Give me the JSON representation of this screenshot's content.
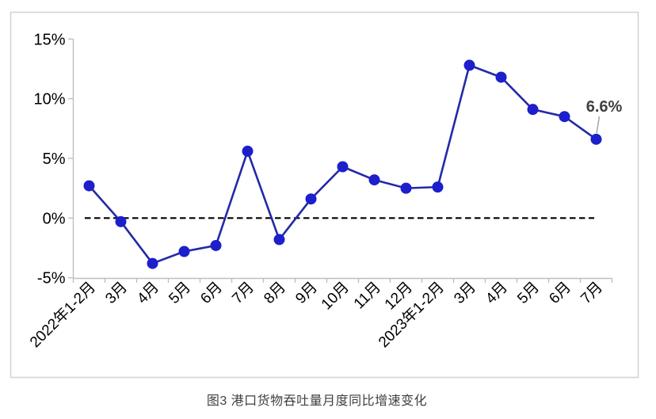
{
  "figure": {
    "caption": "图3 港口货物吞吐量月度同比增速变化",
    "annotation": {
      "text": "6.6%"
    }
  },
  "chart_data": {
    "type": "line",
    "title": "图3 港口货物吞吐量月度同比增速变化",
    "categories": [
      "2022年1-2月",
      "3月",
      "4月",
      "5月",
      "6月",
      "7月",
      "8月",
      "9月",
      "10月",
      "11月",
      "12月",
      "2023年1-2月",
      "3月",
      "4月",
      "5月",
      "6月",
      "7月"
    ],
    "series": [
      {
        "name": "港口货物吞吐量月度同比增速",
        "values": [
          2.7,
          -0.3,
          -3.8,
          -2.8,
          -2.3,
          5.6,
          -1.8,
          1.6,
          4.3,
          3.2,
          2.5,
          2.6,
          12.8,
          11.8,
          9.1,
          8.5,
          6.6
        ]
      }
    ],
    "ylim": [
      -5,
      15
    ],
    "yticks": [
      15,
      10,
      5,
      0,
      -5
    ],
    "ytick_labels": [
      "15%",
      "10%",
      "5%",
      "0%",
      "-5%"
    ],
    "x_label_rotation_deg": 45,
    "grid": false,
    "legend": "none",
    "zero_baseline": {
      "style": "dashed",
      "color": "#000000"
    },
    "annotation": {
      "category": "2023年7月",
      "value": 6.6,
      "label": "6.6%"
    },
    "colors": {
      "line": "#232AA6",
      "marker": "#1C1FCB",
      "axis": "#BFBFBF",
      "border": "#D4D4D4",
      "tick_label": "#000000",
      "annotation_text": "#404040",
      "leader": "#AAAAAA",
      "caption_text": "#404040"
    }
  }
}
